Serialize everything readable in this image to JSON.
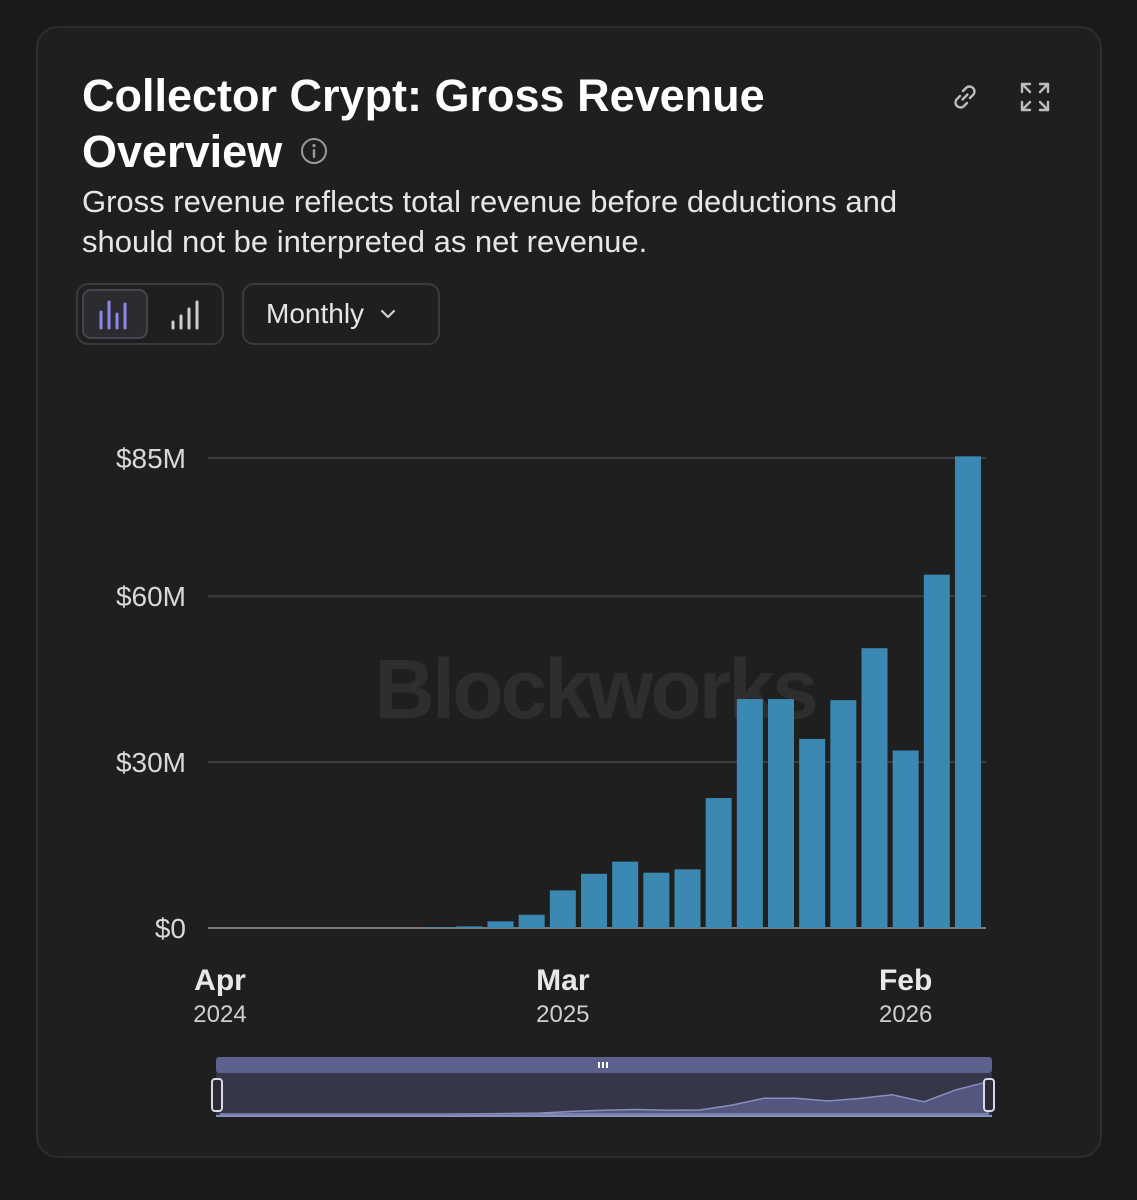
{
  "header": {
    "title": "Collector Crypt: Gross Revenue Overview",
    "subtitle": "Gross revenue reflects total revenue before deductions and should not be interpreted as net revenue.",
    "icons": [
      "info-icon",
      "link-icon",
      "expand-icon"
    ]
  },
  "controls": {
    "view_toggle": [
      "bar-chart-icon",
      "cumulative-chart-icon"
    ],
    "active_view": "bar-chart-icon",
    "interval": "Monthly"
  },
  "watermark": "Blockworks",
  "colors": {
    "bar": "#3b89b3",
    "grid": "#3e3e3e",
    "active_toggle": "#8b86e8",
    "navigator": "#5e6290"
  },
  "chart_data": {
    "type": "bar",
    "title": "Collector Crypt: Gross Revenue Overview",
    "xlabel": "",
    "ylabel": "",
    "ylim": [
      0,
      85
    ],
    "unit": "$M",
    "y_ticks": [
      "$0",
      "$30M",
      "$60M",
      "$85M"
    ],
    "y_tick_values": [
      0,
      30,
      60,
      85
    ],
    "x_ticks": [
      {
        "month": "Apr",
        "year": "2024",
        "category_index": 0
      },
      {
        "month": "Mar",
        "year": "2025",
        "category_index": 11
      },
      {
        "month": "Feb",
        "year": "2026",
        "category_index": 22
      }
    ],
    "categories": [
      "2024-04",
      "2024-05",
      "2024-06",
      "2024-07",
      "2024-08",
      "2024-09",
      "2024-10",
      "2024-11",
      "2024-12",
      "2025-01",
      "2025-02",
      "2025-03",
      "2025-04",
      "2025-05",
      "2025-06",
      "2025-07",
      "2025-08",
      "2025-09",
      "2025-10",
      "2025-11",
      "2025-12",
      "2026-01",
      "2026-02",
      "2026-03",
      "2026-04"
    ],
    "values": [
      0,
      0,
      0,
      0,
      0,
      0,
      0,
      0.1,
      0.3,
      1.2,
      2.4,
      6.8,
      9.8,
      12.0,
      10.0,
      10.6,
      23.5,
      41.4,
      41.4,
      34.2,
      41.2,
      50.6,
      32.1,
      63.9,
      85.3
    ],
    "grid": true,
    "legend": "none"
  }
}
